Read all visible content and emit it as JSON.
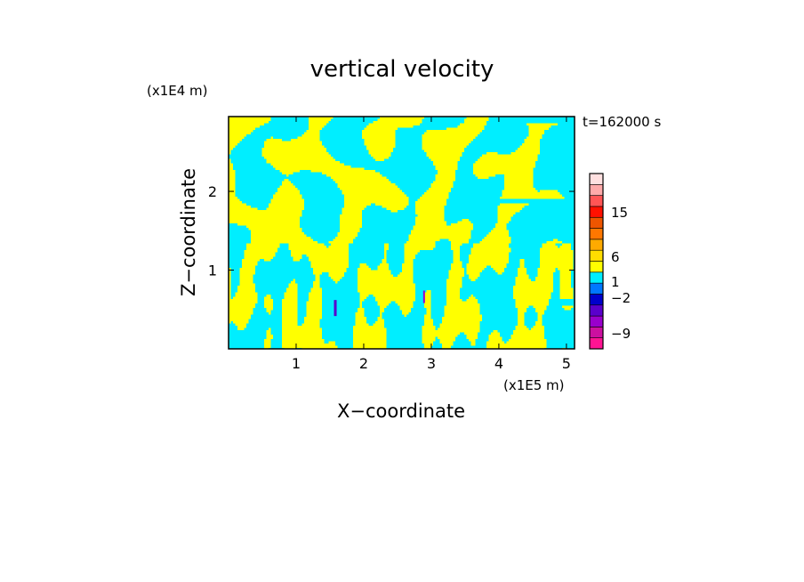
{
  "chart_data": {
    "type": "heatmap",
    "title": "vertical velocity",
    "xlabel": "X−coordinate",
    "ylabel": "Z−coordinate",
    "x_unit": "(x1E5 m)",
    "y_unit": "(x1E4 m)",
    "time_label": "t=162000 s",
    "x_ticks": [
      "1",
      "2",
      "3",
      "4",
      "5"
    ],
    "y_ticks": [
      "1",
      "2"
    ],
    "xlim": [
      0,
      5.12
    ],
    "ylim": [
      0,
      2.95
    ],
    "dominant_colors": {
      "positive": "#ffff00",
      "negative": "#00eeff",
      "frame": "#000000"
    },
    "colorbar": {
      "labels": [
        "15",
        "6",
        "1",
        "−2",
        "−9"
      ],
      "levels": [
        {
          "color": "#ff1493"
        },
        {
          "color": "#cc10a0"
        },
        {
          "color": "#9900cc"
        },
        {
          "color": "#5a00cc"
        },
        {
          "color": "#0000cc"
        },
        {
          "color": "#0077ff"
        },
        {
          "color": "#00eeff"
        },
        {
          "color": "#ffff00"
        },
        {
          "color": "#ffdd00"
        },
        {
          "color": "#ffaa00"
        },
        {
          "color": "#ff7700"
        },
        {
          "color": "#ee5500"
        },
        {
          "color": "#ff1100"
        },
        {
          "color": "#ff5555"
        },
        {
          "color": "#ffaaaa"
        },
        {
          "color": "#ffe0e0"
        }
      ]
    }
  }
}
